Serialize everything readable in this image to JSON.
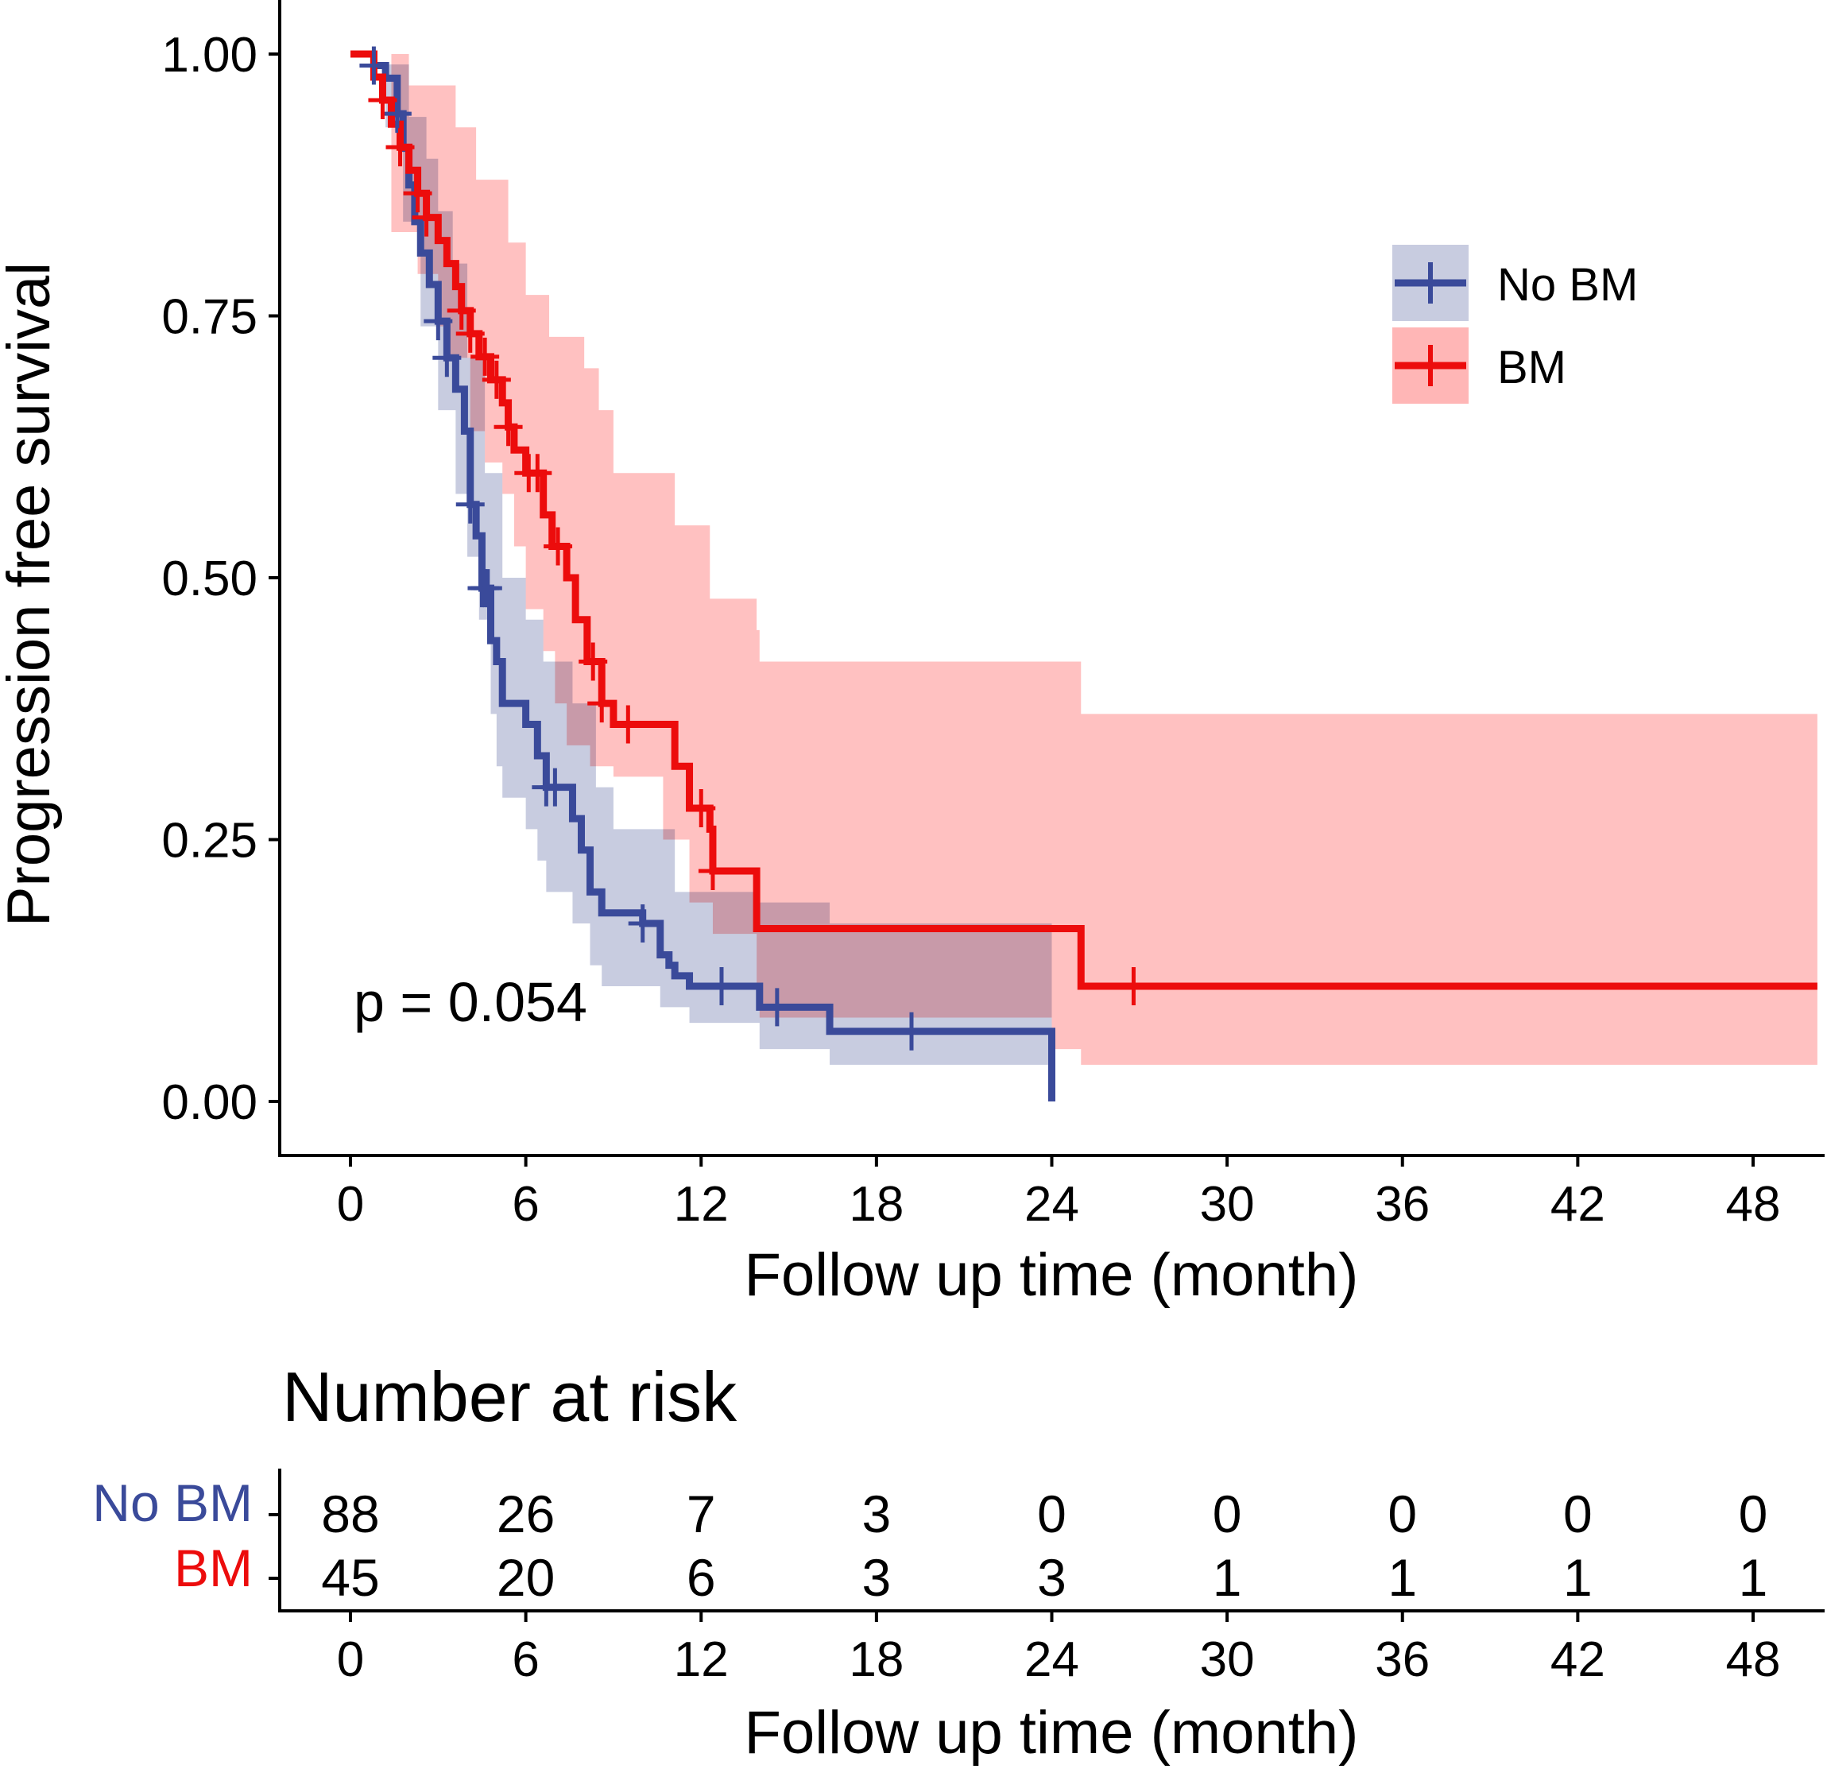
{
  "chart_data": [
    {
      "type": "line",
      "subtype": "kaplan-meier step",
      "title": "",
      "xlabel": "Follow up time (month)",
      "ylabel": "Progression free survival",
      "xlim": [
        -2,
        50.2
      ],
      "ylim": [
        -0.05,
        1.05
      ],
      "x_ticks": [
        "0",
        "6",
        "12",
        "18",
        "24",
        "30",
        "36",
        "42",
        "48"
      ],
      "y_ticks": [
        "0.00",
        "0.25",
        "0.50",
        "0.75",
        "1.00"
      ],
      "annotation": "p = 0.054",
      "legend": {
        "position": "top-right",
        "entries": [
          "No BM",
          "BM"
        ]
      },
      "series": [
        {
          "name": "No BM",
          "color": "#3a4a9a",
          "band_color": "#c8cce0",
          "steps": [
            [
              0,
              1.0
            ],
            [
              0.8,
              0.989
            ],
            [
              1.2,
              0.977
            ],
            [
              1.6,
              0.943
            ],
            [
              1.8,
              0.91
            ],
            [
              2.0,
              0.875
            ],
            [
              2.2,
              0.84
            ],
            [
              2.4,
              0.81
            ],
            [
              2.7,
              0.78
            ],
            [
              3.0,
              0.745
            ],
            [
              3.3,
              0.71
            ],
            [
              3.6,
              0.68
            ],
            [
              3.9,
              0.64
            ],
            [
              4.1,
              0.57
            ],
            [
              4.3,
              0.54
            ],
            [
              4.5,
              0.49
            ],
            [
              4.8,
              0.44
            ],
            [
              5.0,
              0.42
            ],
            [
              5.2,
              0.38
            ],
            [
              6.0,
              0.36
            ],
            [
              6.4,
              0.33
            ],
            [
              6.7,
              0.3
            ],
            [
              7.6,
              0.27
            ],
            [
              7.9,
              0.24
            ],
            [
              8.2,
              0.2
            ],
            [
              8.6,
              0.18
            ],
            [
              10.0,
              0.17
            ],
            [
              10.6,
              0.14
            ],
            [
              10.9,
              0.13
            ],
            [
              11.1,
              0.12
            ],
            [
              11.6,
              0.11
            ],
            [
              14.0,
              0.09
            ],
            [
              16.4,
              0.067
            ],
            [
              24.0,
              0.0
            ]
          ],
          "ci_upper": [
            [
              0,
              1.0
            ],
            [
              1.2,
              0.99
            ],
            [
              2.0,
              0.94
            ],
            [
              2.6,
              0.9
            ],
            [
              3.0,
              0.85
            ],
            [
              3.5,
              0.8
            ],
            [
              4.0,
              0.71
            ],
            [
              4.6,
              0.6
            ],
            [
              5.2,
              0.5
            ],
            [
              6.0,
              0.46
            ],
            [
              6.6,
              0.42
            ],
            [
              7.6,
              0.38
            ],
            [
              8.4,
              0.3
            ],
            [
              9.0,
              0.26
            ],
            [
              11.1,
              0.2
            ],
            [
              14.0,
              0.19
            ],
            [
              16.4,
              0.17
            ],
            [
              24.0,
              0.17
            ]
          ],
          "ci_lower": [
            [
              0,
              1.0
            ],
            [
              1.2,
              0.93
            ],
            [
              1.8,
              0.84
            ],
            [
              2.4,
              0.74
            ],
            [
              3.0,
              0.66
            ],
            [
              3.6,
              0.58
            ],
            [
              4.0,
              0.52
            ],
            [
              4.4,
              0.46
            ],
            [
              4.8,
              0.37
            ],
            [
              5.0,
              0.32
            ],
            [
              5.2,
              0.29
            ],
            [
              6.0,
              0.26
            ],
            [
              6.4,
              0.23
            ],
            [
              6.7,
              0.2
            ],
            [
              7.6,
              0.17
            ],
            [
              8.2,
              0.13
            ],
            [
              8.6,
              0.11
            ],
            [
              10.6,
              0.09
            ],
            [
              11.6,
              0.075
            ],
            [
              14.0,
              0.05
            ],
            [
              16.4,
              0.035
            ],
            [
              24.0,
              0.035
            ]
          ],
          "censor_x": [
            0.8,
            1.6,
            3.0,
            3.3,
            4.1,
            4.5,
            4.6,
            4.7,
            6.7,
            7.0,
            10.0,
            12.7,
            14.6,
            19.2
          ],
          "at_risk": [
            88,
            26,
            7,
            3,
            0,
            0,
            0,
            0,
            0
          ]
        },
        {
          "name": "BM",
          "color": "#ec0c0c",
          "band_color": "#ffb6b6",
          "steps": [
            [
              0,
              1.0
            ],
            [
              0.8,
              0.978
            ],
            [
              1.1,
              0.956
            ],
            [
              1.4,
              0.933
            ],
            [
              1.7,
              0.911
            ],
            [
              2.0,
              0.889
            ],
            [
              2.3,
              0.867
            ],
            [
              2.6,
              0.844
            ],
            [
              3.0,
              0.822
            ],
            [
              3.3,
              0.8
            ],
            [
              3.6,
              0.778
            ],
            [
              3.8,
              0.755
            ],
            [
              4.1,
              0.733
            ],
            [
              4.4,
              0.711
            ],
            [
              4.8,
              0.689
            ],
            [
              5.2,
              0.667
            ],
            [
              5.4,
              0.644
            ],
            [
              5.6,
              0.622
            ],
            [
              6.0,
              0.6
            ],
            [
              6.6,
              0.56
            ],
            [
              6.9,
              0.53
            ],
            [
              7.4,
              0.5
            ],
            [
              7.7,
              0.46
            ],
            [
              8.1,
              0.42
            ],
            [
              8.6,
              0.38
            ],
            [
              9.0,
              0.36
            ],
            [
              11.1,
              0.32
            ],
            [
              11.6,
              0.28
            ],
            [
              12.3,
              0.26
            ],
            [
              12.4,
              0.22
            ],
            [
              13.9,
              0.165
            ],
            [
              25.0,
              0.11
            ],
            [
              50.2,
              0.11
            ]
          ],
          "ci_upper": [
            [
              0,
              1.0
            ],
            [
              2.0,
              0.97
            ],
            [
              3.6,
              0.93
            ],
            [
              4.3,
              0.88
            ],
            [
              5.4,
              0.82
            ],
            [
              6.0,
              0.77
            ],
            [
              6.8,
              0.73
            ],
            [
              8.0,
              0.7
            ],
            [
              8.5,
              0.66
            ],
            [
              9.0,
              0.6
            ],
            [
              11.1,
              0.55
            ],
            [
              12.3,
              0.48
            ],
            [
              13.9,
              0.45
            ],
            [
              14.0,
              0.42
            ],
            [
              25.0,
              0.37
            ]
          ],
          "ci_lower": [
            [
              0,
              1.0
            ],
            [
              1.4,
              0.83
            ],
            [
              2.3,
              0.79
            ],
            [
              3.0,
              0.74
            ],
            [
              3.3,
              0.71
            ],
            [
              4.1,
              0.64
            ],
            [
              4.6,
              0.61
            ],
            [
              5.2,
              0.58
            ],
            [
              5.6,
              0.53
            ],
            [
              6.0,
              0.47
            ],
            [
              6.6,
              0.43
            ],
            [
              7.0,
              0.38
            ],
            [
              7.4,
              0.34
            ],
            [
              8.2,
              0.32
            ],
            [
              9.0,
              0.31
            ],
            [
              10.7,
              0.25
            ],
            [
              11.6,
              0.19
            ],
            [
              12.4,
              0.16
            ],
            [
              13.9,
              0.1
            ],
            [
              14.0,
              0.08
            ],
            [
              24.0,
              0.05
            ],
            [
              25.0,
              0.035
            ]
          ],
          "censor_x": [
            1.1,
            1.7,
            2.3,
            2.6,
            3.8,
            4.1,
            4.6,
            5.0,
            5.4,
            6.1,
            6.4,
            7.1,
            8.3,
            8.6,
            9.5,
            12.0,
            12.4,
            26.8
          ],
          "at_risk": [
            45,
            20,
            6,
            3,
            3,
            1,
            1,
            1,
            1
          ]
        }
      ]
    },
    {
      "type": "table",
      "title": "Number at risk",
      "xlabel": "Follow up time (month)",
      "x_ticks": [
        "0",
        "6",
        "12",
        "18",
        "24",
        "30",
        "36",
        "42",
        "48"
      ],
      "rows": [
        {
          "name": "No BM",
          "color": "#3a4a9a",
          "values": [
            "88",
            "26",
            "7",
            "3",
            "0",
            "0",
            "0",
            "0",
            "0"
          ]
        },
        {
          "name": "BM",
          "color": "#ec0c0c",
          "values": [
            "45",
            "20",
            "6",
            "3",
            "3",
            "1",
            "1",
            "1",
            "1"
          ]
        }
      ]
    }
  ]
}
